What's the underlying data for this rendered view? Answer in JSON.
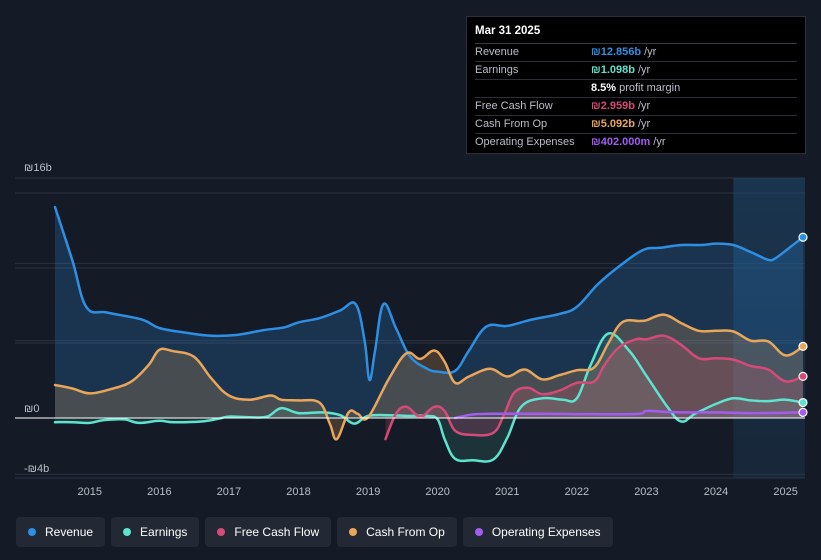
{
  "chart_data": {
    "type": "area",
    "y_axis": {
      "min": -4,
      "max": 16,
      "unit": "b",
      "currency": "₪",
      "labels": [
        "₪16b",
        "₪0",
        "-₪4b"
      ],
      "label_values": [
        16,
        0,
        -4
      ]
    },
    "x_axis": {
      "min": 2014.4,
      "max": 2025.25,
      "ticks": [
        "2015",
        "2016",
        "2017",
        "2018",
        "2019",
        "2020",
        "2021",
        "2022",
        "2023",
        "2024",
        "2025"
      ],
      "tick_values": [
        2015,
        2016,
        2017,
        2018,
        2019,
        2020,
        2021,
        2022,
        2023,
        2024,
        2025
      ]
    },
    "highlight_start": 2024.25,
    "series": [
      {
        "name": "Revenue",
        "color": "#2d8fe3",
        "points": [
          [
            2014.5,
            15
          ],
          [
            2014.75,
            11.2
          ],
          [
            2014.95,
            7.9
          ],
          [
            2015.25,
            7.5
          ],
          [
            2015.75,
            7
          ],
          [
            2016.0,
            6.4
          ],
          [
            2016.4,
            6.05
          ],
          [
            2016.75,
            5.85
          ],
          [
            2017.1,
            5.9
          ],
          [
            2017.5,
            6.25
          ],
          [
            2017.8,
            6.45
          ],
          [
            2018.0,
            6.8
          ],
          [
            2018.3,
            7.1
          ],
          [
            2018.6,
            7.65
          ],
          [
            2018.82,
            8.1
          ],
          [
            2018.95,
            5.5
          ],
          [
            2019.02,
            2.7
          ],
          [
            2019.1,
            4.8
          ],
          [
            2019.22,
            8.1
          ],
          [
            2019.4,
            6.4
          ],
          [
            2019.6,
            4.4
          ],
          [
            2019.85,
            3.5
          ],
          [
            2020.0,
            3.3
          ],
          [
            2020.25,
            3.35
          ],
          [
            2020.45,
            4.8
          ],
          [
            2020.7,
            6.5
          ],
          [
            2021.0,
            6.55
          ],
          [
            2021.35,
            7.0
          ],
          [
            2021.75,
            7.4
          ],
          [
            2022.0,
            7.9
          ],
          [
            2022.3,
            9.5
          ],
          [
            2022.6,
            10.75
          ],
          [
            2022.95,
            11.95
          ],
          [
            2023.2,
            12.1
          ],
          [
            2023.5,
            12.3
          ],
          [
            2023.8,
            12.3
          ],
          [
            2024.0,
            12.4
          ],
          [
            2024.25,
            12.3
          ],
          [
            2024.5,
            11.8
          ],
          [
            2024.75,
            11.25
          ],
          [
            2024.85,
            11.35
          ],
          [
            2025.0,
            11.9
          ],
          [
            2025.25,
            12.856
          ]
        ]
      },
      {
        "name": "Earnings",
        "color": "#5ee3cd",
        "points": [
          [
            2014.5,
            -0.3
          ],
          [
            2014.75,
            -0.3
          ],
          [
            2015.0,
            -0.35
          ],
          [
            2015.2,
            -0.15
          ],
          [
            2015.5,
            -0.1
          ],
          [
            2015.7,
            -0.35
          ],
          [
            2016.0,
            -0.2
          ],
          [
            2016.2,
            -0.3
          ],
          [
            2016.6,
            -0.25
          ],
          [
            2016.85,
            -0.05
          ],
          [
            2017.0,
            0.1
          ],
          [
            2017.3,
            0.05
          ],
          [
            2017.55,
            0.1
          ],
          [
            2017.75,
            0.7
          ],
          [
            2018.0,
            0.35
          ],
          [
            2018.35,
            0.4
          ],
          [
            2018.6,
            0.2
          ],
          [
            2018.8,
            -0.4
          ],
          [
            2019.0,
            0.15
          ],
          [
            2019.3,
            0.2
          ],
          [
            2019.6,
            0.15
          ],
          [
            2019.85,
            0.15
          ],
          [
            2020.0,
            -0.1
          ],
          [
            2020.1,
            -1.5
          ],
          [
            2020.25,
            -2.9
          ],
          [
            2020.5,
            -3.0
          ],
          [
            2020.8,
            -2.95
          ],
          [
            2021.0,
            -1.4
          ],
          [
            2021.2,
            0.8
          ],
          [
            2021.5,
            1.4
          ],
          [
            2021.8,
            1.3
          ],
          [
            2022.0,
            1.4
          ],
          [
            2022.2,
            3.8
          ],
          [
            2022.45,
            6.0
          ],
          [
            2022.75,
            4.8
          ],
          [
            2023.0,
            3.0
          ],
          [
            2023.3,
            0.8
          ],
          [
            2023.5,
            -0.25
          ],
          [
            2023.7,
            0.3
          ],
          [
            2024.0,
            1.0
          ],
          [
            2024.25,
            1.4
          ],
          [
            2024.5,
            1.25
          ],
          [
            2024.75,
            1.2
          ],
          [
            2025.0,
            1.3
          ],
          [
            2025.25,
            1.098
          ]
        ]
      },
      {
        "name": "Free Cash Flow",
        "color": "#d44a78",
        "points": [
          [
            2019.25,
            -1.5
          ],
          [
            2019.4,
            0.3
          ],
          [
            2019.55,
            0.8
          ],
          [
            2019.75,
            0.1
          ],
          [
            2019.95,
            0.8
          ],
          [
            2020.1,
            0.5
          ],
          [
            2020.25,
            -0.9
          ],
          [
            2020.5,
            -1.2
          ],
          [
            2020.8,
            -1.05
          ],
          [
            2020.95,
            0.2
          ],
          [
            2021.1,
            1.8
          ],
          [
            2021.3,
            2.15
          ],
          [
            2021.5,
            1.7
          ],
          [
            2021.75,
            1.95
          ],
          [
            2022.0,
            2.5
          ],
          [
            2022.25,
            2.6
          ],
          [
            2022.4,
            3.8
          ],
          [
            2022.6,
            5.0
          ],
          [
            2022.85,
            5.6
          ],
          [
            2023.0,
            5.6
          ],
          [
            2023.25,
            5.85
          ],
          [
            2023.5,
            5.2
          ],
          [
            2023.75,
            4.25
          ],
          [
            2024.0,
            4.25
          ],
          [
            2024.25,
            4.15
          ],
          [
            2024.5,
            3.7
          ],
          [
            2024.75,
            3.45
          ],
          [
            2025.0,
            2.6
          ],
          [
            2025.25,
            2.959
          ]
        ]
      },
      {
        "name": "Cash From Op",
        "color": "#e8a65b",
        "points": [
          [
            2014.5,
            2.35
          ],
          [
            2014.75,
            2.1
          ],
          [
            2015.0,
            1.75
          ],
          [
            2015.3,
            2.05
          ],
          [
            2015.6,
            2.6
          ],
          [
            2015.85,
            3.8
          ],
          [
            2016.0,
            4.85
          ],
          [
            2016.2,
            4.75
          ],
          [
            2016.5,
            4.35
          ],
          [
            2016.75,
            2.8
          ],
          [
            2017.0,
            1.6
          ],
          [
            2017.3,
            1.3
          ],
          [
            2017.6,
            1.6
          ],
          [
            2017.75,
            1.3
          ],
          [
            2018.0,
            1.25
          ],
          [
            2018.3,
            1.1
          ],
          [
            2018.45,
            -0.4
          ],
          [
            2018.55,
            -1.5
          ],
          [
            2018.72,
            0.4
          ],
          [
            2018.85,
            0.3
          ],
          [
            2019.0,
            0.05
          ],
          [
            2019.3,
            2.8
          ],
          [
            2019.55,
            4.6
          ],
          [
            2019.75,
            4.2
          ],
          [
            2019.95,
            4.8
          ],
          [
            2020.1,
            4.0
          ],
          [
            2020.25,
            2.5
          ],
          [
            2020.45,
            2.95
          ],
          [
            2020.75,
            3.5
          ],
          [
            2021.0,
            2.95
          ],
          [
            2021.25,
            3.45
          ],
          [
            2021.5,
            2.75
          ],
          [
            2021.75,
            3.05
          ],
          [
            2022.0,
            3.4
          ],
          [
            2022.25,
            3.6
          ],
          [
            2022.45,
            5.3
          ],
          [
            2022.65,
            6.8
          ],
          [
            2022.9,
            6.9
          ],
          [
            2023.0,
            6.95
          ],
          [
            2023.25,
            7.35
          ],
          [
            2023.5,
            6.75
          ],
          [
            2023.75,
            6.2
          ],
          [
            2024.0,
            6.2
          ],
          [
            2024.25,
            6.15
          ],
          [
            2024.5,
            5.5
          ],
          [
            2024.75,
            5.45
          ],
          [
            2025.0,
            4.45
          ],
          [
            2025.25,
            5.092
          ]
        ]
      },
      {
        "name": "Operating Expenses",
        "color": "#a35cf0",
        "points": [
          [
            2020.25,
            0.0
          ],
          [
            2020.5,
            0.25
          ],
          [
            2020.75,
            0.3
          ],
          [
            2021.0,
            0.3
          ],
          [
            2021.5,
            0.3
          ],
          [
            2022.0,
            0.28
          ],
          [
            2022.5,
            0.27
          ],
          [
            2022.9,
            0.3
          ],
          [
            2023.0,
            0.5
          ],
          [
            2023.25,
            0.45
          ],
          [
            2023.5,
            0.4
          ],
          [
            2024.0,
            0.4
          ],
          [
            2024.5,
            0.35
          ],
          [
            2025.0,
            0.38
          ],
          [
            2025.25,
            0.402
          ]
        ]
      }
    ]
  },
  "tooltip": {
    "date": "Mar 31 2025",
    "rows": [
      {
        "label": "Revenue",
        "value": "₪12.856b",
        "unit": "/yr",
        "color": "#2d8fe3"
      },
      {
        "label": "Earnings",
        "value": "₪1.098b",
        "unit": "/yr",
        "color": "#5ee3cd"
      },
      {
        "label": "",
        "value": "8.5%",
        "unit": "profit margin",
        "color": "#ffffff"
      },
      {
        "label": "Free Cash Flow",
        "value": "₪2.959b",
        "unit": "/yr",
        "color": "#d44a78"
      },
      {
        "label": "Cash From Op",
        "value": "₪5.092b",
        "unit": "/yr",
        "color": "#e8a65b"
      },
      {
        "label": "Operating Expenses",
        "value": "₪402.000m",
        "unit": "/yr",
        "color": "#a35cf0"
      }
    ]
  },
  "legend": [
    {
      "label": "Revenue",
      "color": "#2d8fe3"
    },
    {
      "label": "Earnings",
      "color": "#5ee3cd"
    },
    {
      "label": "Free Cash Flow",
      "color": "#d44a78"
    },
    {
      "label": "Cash From Op",
      "color": "#e8a65b"
    },
    {
      "label": "Operating Expenses",
      "color": "#a35cf0"
    }
  ]
}
